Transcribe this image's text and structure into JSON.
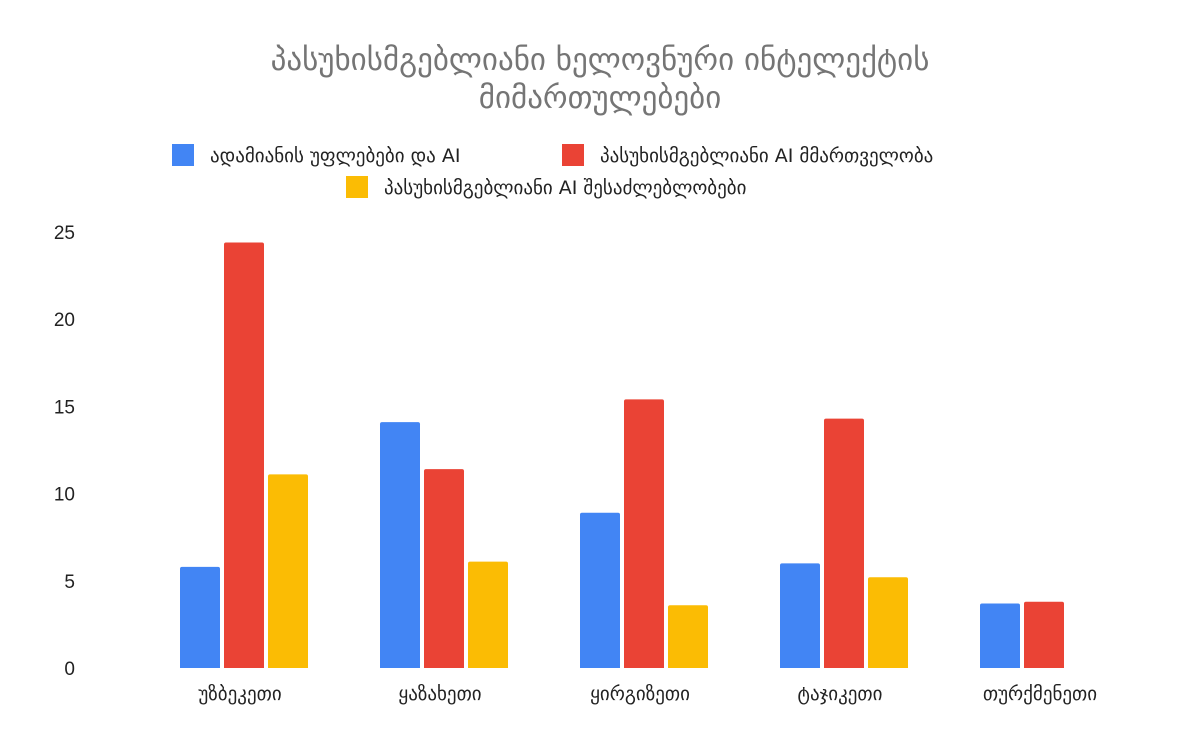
{
  "chart_data": {
    "type": "bar",
    "title_lines": [
      "პასუხისმგებლიანი ხელოვნური ინტელექტის",
      "მიმართულებები"
    ],
    "xlabel": "",
    "ylabel": "",
    "categories": [
      "უზბეკეთი",
      "ყაზახეთი",
      "ყირგიზეთი",
      "ტაჯიკეთი",
      "თურქმენეთი"
    ],
    "series": [
      {
        "name": "ადამიანის უფლებები და AI",
        "color": "#4285F4",
        "values": [
          5.8,
          14.1,
          8.9,
          6.0,
          3.7
        ]
      },
      {
        "name": "პასუხისმგებლიანი AI მმართველობა",
        "color": "#EA4335",
        "values": [
          24.4,
          11.4,
          15.4,
          14.3,
          3.8
        ]
      },
      {
        "name": "პასუხისმგებლიანი AI შესაძლებლობები",
        "color": "#FBBC04",
        "values": [
          11.1,
          6.1,
          3.6,
          5.2,
          0
        ]
      }
    ],
    "ylim": [
      0,
      25
    ],
    "yticks": [
      "0",
      "5",
      "10",
      "15",
      "20",
      "25"
    ],
    "grid": false,
    "legend_position": "top"
  }
}
